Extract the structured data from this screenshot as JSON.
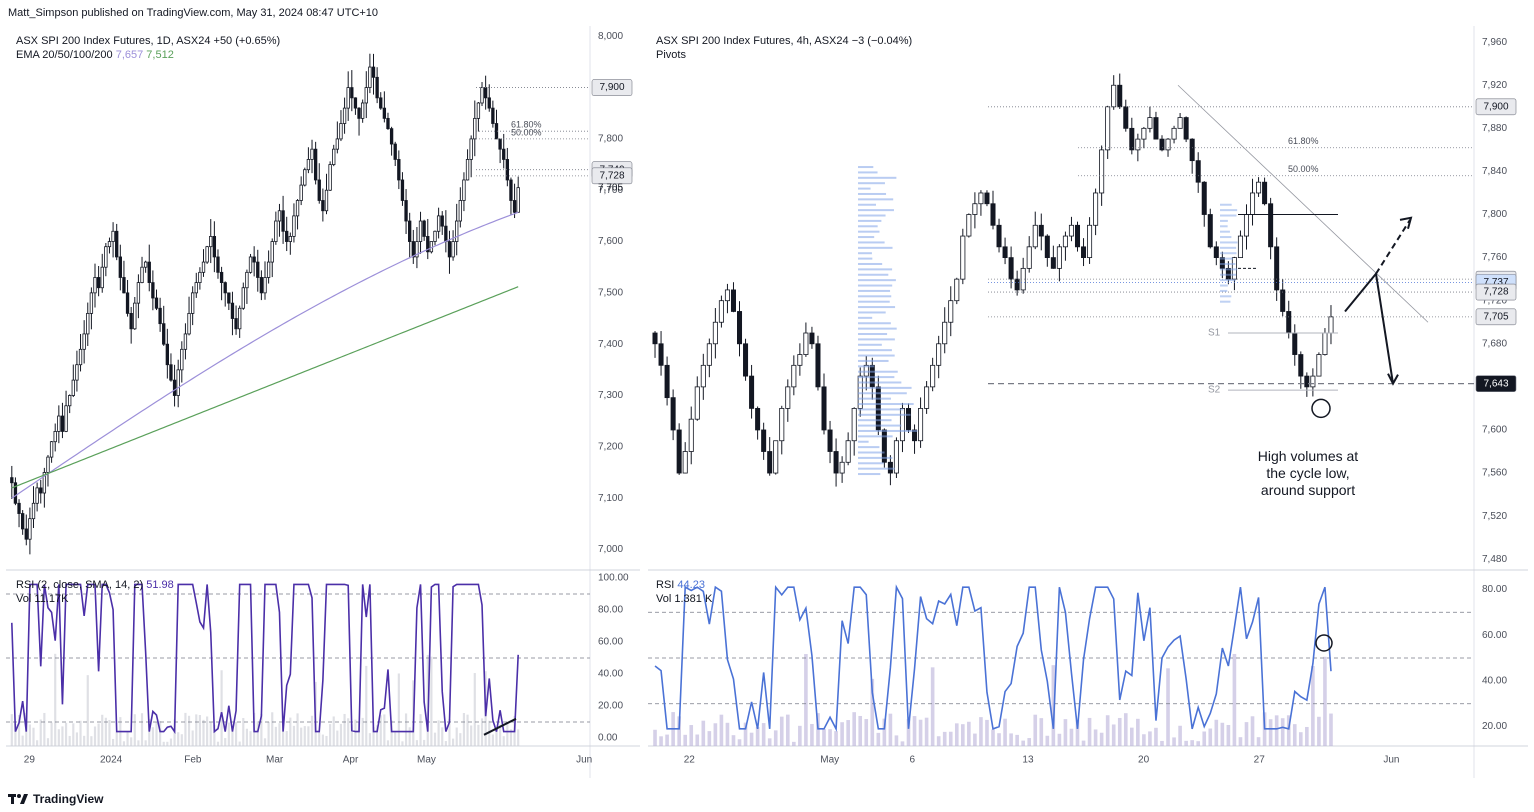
{
  "header": {
    "text": "Matt_Simpson published on TradingView.com, May 31, 2024 08:47 UTC+10"
  },
  "footer": {
    "brand": "TradingView",
    "logo_icon": "tradingview-logo-icon"
  },
  "colors": {
    "up": "#131722",
    "down": "#131722",
    "ema100": "#9c8fd9",
    "ema200": "#5aa05a",
    "rsi_daily": "#4b2fa8",
    "rsi_4h": "#4a72d6",
    "volume_profile": "#7fa3e8",
    "volume": "#b9b0d8",
    "level_box": "#787b86",
    "last_box": "#131722"
  },
  "chart_data": [
    {
      "id": "daily",
      "type": "candlestick",
      "title": "ASX SPI 200 Index Futures, 1D, ASX24",
      "change": "+50 (+0.65%)",
      "ema_label": "EMA 20/50/100/200",
      "ema_values": [
        "7,657",
        "7,512"
      ],
      "ylim": [
        6960,
        8020
      ],
      "y_ticks": [
        "7,000",
        "7,100",
        "7,200",
        "7,300",
        "7,400",
        "7,500",
        "7,600",
        "7,700",
        "7,800",
        "7,900",
        "8,000"
      ],
      "x_ticks": [
        "29",
        "2024",
        "Feb",
        "Mar",
        "Apr",
        "May",
        "Jun"
      ],
      "fib_labels": [
        "61.80%",
        "50.00%"
      ],
      "fib_levels": [
        7815,
        7800
      ],
      "price_levels": [
        {
          "label": "7,900",
          "value": 7900,
          "style": "box"
        },
        {
          "label": "7,740",
          "value": 7740,
          "style": "box"
        },
        {
          "label": "7,728",
          "value": 7728,
          "style": "box"
        },
        {
          "label": "7,705",
          "value": 7705,
          "style": "text"
        }
      ],
      "closes": [
        7130,
        7090,
        7070,
        7040,
        7020,
        7060,
        7090,
        7120,
        7110,
        7150,
        7180,
        7210,
        7230,
        7260,
        7230,
        7280,
        7300,
        7330,
        7360,
        7390,
        7420,
        7460,
        7500,
        7530,
        7510,
        7550,
        7590,
        7600,
        7620,
        7570,
        7530,
        7500,
        7460,
        7430,
        7480,
        7520,
        7550,
        7560,
        7520,
        7490,
        7470,
        7440,
        7400,
        7360,
        7330,
        7300,
        7350,
        7390,
        7420,
        7460,
        7500,
        7520,
        7540,
        7560,
        7590,
        7610,
        7570,
        7540,
        7520,
        7500,
        7480,
        7450,
        7430,
        7470,
        7510,
        7540,
        7570,
        7560,
        7530,
        7500,
        7530,
        7560,
        7600,
        7640,
        7660,
        7620,
        7600,
        7610,
        7650,
        7680,
        7710,
        7740,
        7760,
        7780,
        7720,
        7680,
        7660,
        7700,
        7750,
        7780,
        7800,
        7830,
        7860,
        7900,
        7880,
        7860,
        7840,
        7870,
        7900,
        7940,
        7920,
        7880,
        7860,
        7840,
        7820,
        7790,
        7760,
        7720,
        7680,
        7640,
        7600,
        7570,
        7600,
        7640,
        7610,
        7580,
        7600,
        7620,
        7650,
        7630,
        7600,
        7570,
        7600,
        7640,
        7680,
        7720,
        7760,
        7800,
        7840,
        7870,
        7900,
        7880,
        7860,
        7830,
        7800,
        7780,
        7760,
        7720,
        7680,
        7657,
        7705
      ],
      "ema100": {
        "start": 7100,
        "end": 7657
      },
      "ema200": {
        "start": 7120,
        "end": 7512
      },
      "rsi": {
        "label": "RSI (2, close, SMA, 14, 2)",
        "value": "51.98",
        "vol_label": "Vol",
        "vol_value": "11.17K",
        "ylim": [
          0,
          100
        ],
        "y_ticks": [
          "0.00",
          "20.00",
          "40.00",
          "60.00",
          "80.00",
          "100.00"
        ],
        "levels": [
          90,
          50,
          10
        ]
      }
    },
    {
      "id": "4h",
      "type": "candlestick",
      "title": "ASX SPI 200 Index Futures, 4h, ASX24",
      "change": "−3 (−0.04%)",
      "subtitle": "Pivots",
      "ylim": [
        7470,
        7975
      ],
      "y_ticks": [
        "7,480",
        "7,520",
        "7,560",
        "7,600",
        "7,640",
        "7,680",
        "7,720",
        "7,760",
        "7,800",
        "7,840",
        "7,880",
        "7,920",
        "7,960"
      ],
      "x_ticks": [
        "22",
        "May",
        "6",
        "13",
        "20",
        "27",
        "Jun"
      ],
      "fib_labels": [
        "61.80%",
        "50.00%"
      ],
      "fib_levels": [
        7862,
        7836
      ],
      "pivot_labels": [
        "S1",
        "S2"
      ],
      "pivot_levels": [
        7690,
        7637
      ],
      "price_levels": [
        {
          "label": "7,900",
          "value": 7900,
          "style": "box"
        },
        {
          "label": "7,740",
          "value": 7740,
          "style": "box"
        },
        {
          "label": "7,737",
          "value": 7737,
          "style": "blue"
        },
        {
          "label": "7,728",
          "value": 7728,
          "style": "box"
        },
        {
          "label": "7,705",
          "value": 7705,
          "style": "box"
        },
        {
          "label": "7,643",
          "value": 7643,
          "style": "dark"
        }
      ],
      "annotation": [
        "High volumes at",
        "the cycle low,",
        "around support"
      ],
      "closes": [
        7680,
        7660,
        7630,
        7600,
        7560,
        7580,
        7610,
        7640,
        7660,
        7680,
        7700,
        7720,
        7730,
        7710,
        7680,
        7650,
        7620,
        7600,
        7580,
        7560,
        7590,
        7620,
        7640,
        7660,
        7670,
        7690,
        7680,
        7640,
        7600,
        7580,
        7560,
        7570,
        7590,
        7620,
        7650,
        7660,
        7640,
        7600,
        7570,
        7560,
        7590,
        7620,
        7600,
        7590,
        7620,
        7640,
        7660,
        7680,
        7700,
        7720,
        7740,
        7780,
        7800,
        7810,
        7820,
        7810,
        7790,
        7770,
        7760,
        7740,
        7730,
        7750,
        7770,
        7790,
        7780,
        7760,
        7750,
        7770,
        7780,
        7790,
        7770,
        7760,
        7790,
        7820,
        7860,
        7900,
        7920,
        7900,
        7880,
        7860,
        7870,
        7880,
        7890,
        7870,
        7860,
        7870,
        7880,
        7890,
        7870,
        7850,
        7830,
        7800,
        7770,
        7760,
        7750,
        7740,
        7760,
        7780,
        7800,
        7820,
        7830,
        7810,
        7770,
        7730,
        7710,
        7690,
        7670,
        7650,
        7640,
        7650,
        7670,
        7690,
        7705
      ],
      "rsi": {
        "label": "RSI",
        "value": "44.23",
        "vol_label": "Vol",
        "vol_value": "1.381 K",
        "ylim": [
          15,
          85
        ],
        "y_ticks": [
          "20.00",
          "40.00",
          "60.00",
          "80.00"
        ],
        "levels": [
          70,
          50,
          30
        ]
      }
    }
  ]
}
